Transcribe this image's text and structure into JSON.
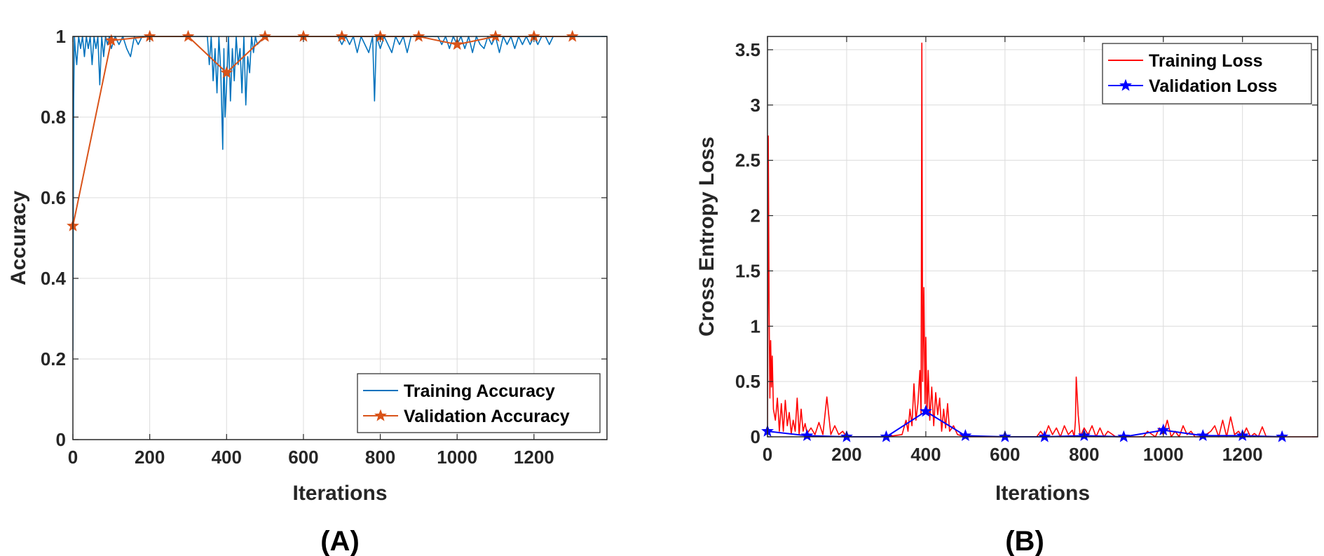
{
  "chart_data": [
    {
      "panel_label": "(A)",
      "type": "line",
      "xlabel": "Iterations",
      "ylabel": "Accuracy",
      "xlim": [
        0,
        1390
      ],
      "ylim": [
        0,
        1
      ],
      "xticks": [
        0,
        200,
        400,
        600,
        800,
        1000,
        1200
      ],
      "yticks": [
        0,
        0.2,
        0.4,
        0.6,
        0.8,
        1
      ],
      "grid": true,
      "legend_position": "bottom-right",
      "series": [
        {
          "name": "Training Accuracy",
          "color": "#0072BD",
          "marker": "none",
          "x": [
            0,
            2,
            4,
            6,
            10,
            15,
            20,
            25,
            30,
            35,
            40,
            45,
            50,
            55,
            60,
            65,
            70,
            75,
            80,
            85,
            90,
            95,
            100,
            110,
            120,
            130,
            140,
            150,
            160,
            170,
            180,
            190,
            200,
            250,
            300,
            350,
            355,
            360,
            365,
            370,
            375,
            380,
            385,
            390,
            393,
            396,
            400,
            405,
            410,
            415,
            420,
            425,
            430,
            435,
            440,
            445,
            450,
            455,
            460,
            465,
            470,
            475,
            480,
            500,
            600,
            690,
            700,
            710,
            720,
            730,
            740,
            750,
            760,
            770,
            780,
            785,
            790,
            800,
            810,
            820,
            830,
            840,
            850,
            860,
            870,
            880,
            900,
            950,
            960,
            970,
            980,
            990,
            1000,
            1010,
            1020,
            1030,
            1040,
            1050,
            1060,
            1070,
            1080,
            1090,
            1100,
            1110,
            1120,
            1130,
            1140,
            1150,
            1160,
            1170,
            1180,
            1190,
            1200,
            1210,
            1220,
            1230,
            1240,
            1250,
            1300,
            1390
          ],
          "y": [
            0.22,
            0.84,
            1.0,
            0.97,
            0.93,
            1.0,
            0.97,
            1.0,
            0.95,
            1.0,
            0.97,
            1.0,
            0.93,
            1.0,
            0.97,
            1.0,
            0.88,
            1.0,
            0.95,
            1.0,
            0.98,
            1.0,
            0.97,
            1.0,
            0.98,
            1.0,
            0.97,
            0.95,
            1.0,
            0.98,
            1.0,
            1.0,
            1.0,
            1.0,
            1.0,
            1.0,
            0.93,
            1.0,
            0.89,
            0.97,
            0.86,
            1.0,
            0.91,
            0.72,
            0.97,
            0.8,
            0.88,
            1.0,
            0.84,
            0.97,
            0.89,
            1.0,
            0.93,
            0.97,
            0.86,
            1.0,
            0.83,
            0.95,
            0.91,
            1.0,
            0.96,
            1.0,
            0.98,
            1.0,
            1.0,
            1.0,
            0.98,
            1.0,
            0.98,
            1.0,
            0.96,
            1.0,
            0.98,
            0.96,
            1.0,
            0.84,
            1.0,
            0.97,
            1.0,
            0.98,
            0.96,
            1.0,
            0.98,
            1.0,
            0.96,
            1.0,
            1.0,
            1.0,
            0.98,
            1.0,
            0.97,
            1.0,
            0.98,
            1.0,
            0.97,
            1.0,
            0.96,
            1.0,
            0.98,
            0.97,
            1.0,
            0.98,
            1.0,
            0.96,
            1.0,
            0.98,
            1.0,
            0.97,
            1.0,
            0.98,
            1.0,
            0.98,
            1.0,
            0.98,
            1.0,
            1.0,
            0.98,
            1.0,
            1.0,
            1.0
          ]
        },
        {
          "name": "Validation Accuracy",
          "color": "#D95319",
          "marker": "star",
          "x": [
            0,
            100,
            200,
            300,
            400,
            500,
            600,
            700,
            800,
            900,
            1000,
            1100,
            1200,
            1300
          ],
          "y": [
            0.53,
            0.99,
            1.0,
            1.0,
            0.91,
            1.0,
            1.0,
            1.0,
            1.0,
            1.0,
            0.98,
            1.0,
            1.0,
            1.0
          ]
        }
      ]
    },
    {
      "panel_label": "(B)",
      "type": "line",
      "xlabel": "Iterations",
      "ylabel": "Cross Entropy Loss",
      "xlim": [
        0,
        1390
      ],
      "ylim": [
        0,
        3.62
      ],
      "xticks": [
        0,
        200,
        400,
        600,
        800,
        1000,
        1200
      ],
      "yticks": [
        0,
        0.5,
        1,
        1.5,
        2,
        2.5,
        3,
        3.5
      ],
      "grid": true,
      "legend_position": "top-right",
      "series": [
        {
          "name": "Training Loss",
          "color": "#FF0000",
          "marker": "none",
          "x": [
            0,
            2,
            4,
            6,
            8,
            10,
            12,
            15,
            20,
            25,
            30,
            35,
            40,
            45,
            50,
            55,
            60,
            65,
            70,
            75,
            80,
            85,
            90,
            95,
            100,
            110,
            120,
            130,
            140,
            150,
            160,
            170,
            180,
            190,
            200,
            250,
            300,
            340,
            350,
            355,
            360,
            365,
            370,
            375,
            380,
            385,
            388,
            390,
            392,
            395,
            398,
            400,
            403,
            406,
            410,
            415,
            420,
            425,
            430,
            435,
            440,
            445,
            450,
            455,
            460,
            470,
            480,
            500,
            600,
            680,
            690,
            700,
            710,
            720,
            730,
            740,
            750,
            760,
            770,
            775,
            778,
            780,
            785,
            790,
            800,
            810,
            820,
            830,
            840,
            850,
            860,
            880,
            900,
            950,
            960,
            980,
            990,
            1000,
            1010,
            1020,
            1030,
            1040,
            1050,
            1060,
            1070,
            1080,
            1100,
            1120,
            1130,
            1140,
            1150,
            1160,
            1170,
            1180,
            1190,
            1200,
            1210,
            1220,
            1230,
            1240,
            1250,
            1260,
            1300,
            1390
          ],
          "y": [
            0.05,
            2.72,
            1.2,
            0.35,
            0.87,
            0.45,
            0.73,
            0.25,
            0.15,
            0.35,
            0.05,
            0.3,
            0.05,
            0.33,
            0.1,
            0.22,
            0.03,
            0.15,
            0.05,
            0.35,
            0.02,
            0.25,
            0.05,
            0.12,
            0.03,
            0.08,
            0.02,
            0.13,
            0.02,
            0.36,
            0.02,
            0.1,
            0.02,
            0.05,
            0.0,
            0.0,
            0.0,
            0.02,
            0.15,
            0.05,
            0.25,
            0.1,
            0.48,
            0.15,
            0.3,
            0.6,
            0.2,
            3.56,
            0.5,
            1.35,
            0.3,
            0.9,
            0.2,
            0.6,
            0.15,
            0.45,
            0.1,
            0.4,
            0.2,
            0.35,
            0.05,
            0.25,
            0.08,
            0.3,
            0.05,
            0.1,
            0.02,
            0.0,
            0.0,
            0.0,
            0.05,
            0.0,
            0.1,
            0.02,
            0.08,
            0.0,
            0.1,
            0.02,
            0.06,
            0.0,
            0.15,
            0.54,
            0.2,
            0.0,
            0.08,
            0.02,
            0.1,
            0.0,
            0.08,
            0.0,
            0.05,
            0.0,
            0.0,
            0.0,
            0.05,
            0.0,
            0.08,
            0.02,
            0.15,
            0.0,
            0.05,
            0.0,
            0.1,
            0.02,
            0.05,
            0.0,
            0.0,
            0.05,
            0.1,
            0.0,
            0.15,
            0.0,
            0.18,
            0.02,
            0.05,
            0.0,
            0.08,
            0.0,
            0.03,
            0.0,
            0.09,
            0.0,
            0.0,
            0.0
          ]
        },
        {
          "name": "Validation Loss",
          "color": "#0000FF",
          "marker": "star",
          "x": [
            0,
            100,
            200,
            300,
            400,
            500,
            600,
            700,
            800,
            900,
            1000,
            1100,
            1200,
            1300
          ],
          "y": [
            0.05,
            0.01,
            0.0,
            0.0,
            0.23,
            0.01,
            0.0,
            0.0,
            0.01,
            0.0,
            0.06,
            0.01,
            0.01,
            0.0
          ]
        }
      ]
    }
  ]
}
